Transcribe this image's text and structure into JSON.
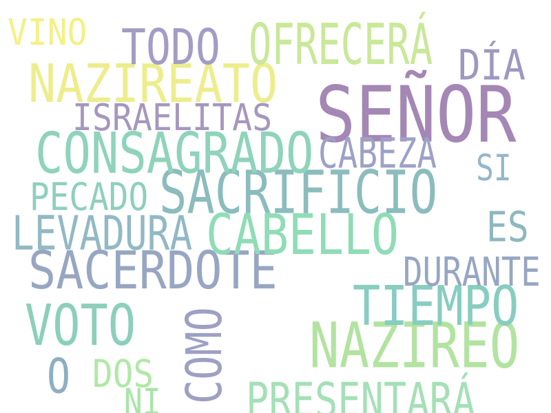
{
  "words": [
    {
      "text": "SEÑOR",
      "color": "#a487b5"
    },
    {
      "text": "NAZIREO",
      "color": "#b2e3a1"
    },
    {
      "text": "SACRIFICIO",
      "color": "#8cbcbd"
    },
    {
      "text": "CONSAGRADO",
      "color": "#8fd3bb"
    },
    {
      "text": "SACERDOTE",
      "color": "#97a6c2"
    },
    {
      "text": "CABELLO",
      "color": "#8fdcb6"
    },
    {
      "text": "NAZIREATO",
      "color": "#eded8c"
    },
    {
      "text": "TIEMPO",
      "color": "#87cdc0"
    },
    {
      "text": "VOTO",
      "color": "#8ccfbb"
    },
    {
      "text": "TODO",
      "color": "#a49cc4"
    },
    {
      "text": "PRESENTARÁ",
      "color": "#a5e0b7"
    },
    {
      "text": "LEVADURA",
      "color": "#92b9c4"
    },
    {
      "text": "OFRECERÁ",
      "color": "#c9e899"
    },
    {
      "text": "ISRAELITAS",
      "color": "#a597be"
    },
    {
      "text": "DURANTE",
      "color": "#97a6c2"
    },
    {
      "text": "CABEZA",
      "color": "#9ea1c6"
    },
    {
      "text": "COMO",
      "color": "#9ea0c3"
    },
    {
      "text": "DÍA",
      "color": "#9e98c1"
    },
    {
      "text": "PECADO",
      "color": "#8fcfbe"
    },
    {
      "text": "ES",
      "color": "#8fb7bf"
    },
    {
      "text": "O",
      "color": "#8eafc2"
    },
    {
      "text": "VINO",
      "color": "#f4f085"
    },
    {
      "text": "SI",
      "color": "#95b7c9"
    },
    {
      "text": "DOS",
      "color": "#b1e8a7"
    },
    {
      "text": "NI",
      "color": "#a8e5a8"
    }
  ]
}
